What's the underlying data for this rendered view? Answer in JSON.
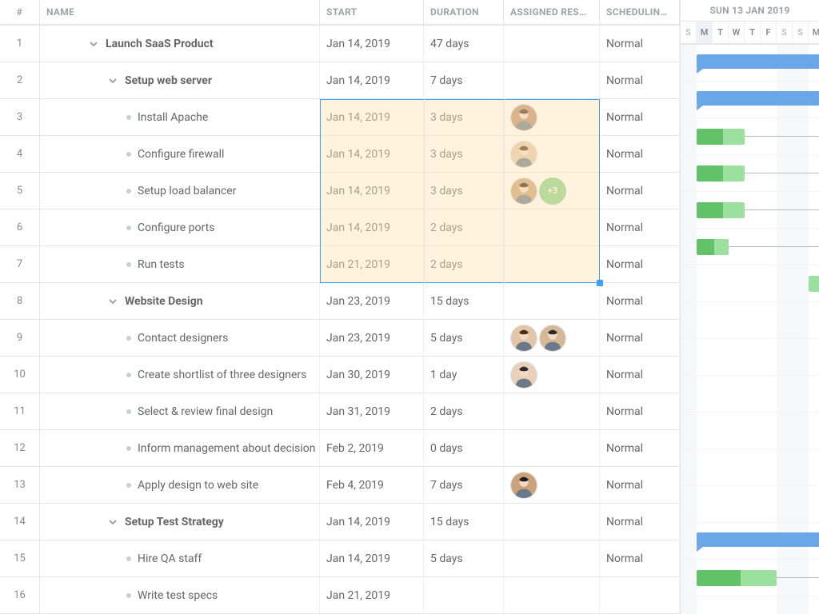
{
  "columns": {
    "num": "#",
    "name": "NAME",
    "start": "START",
    "duration": "DURATION",
    "resources": "ASSIGNED RES…",
    "scheduling": "SCHEDULIN…"
  },
  "gantt": {
    "week_label": "SUN 13 JAN 2019",
    "day_width": 20,
    "start_weekday": 0,
    "days": [
      "S",
      "M",
      "T",
      "W",
      "T",
      "F",
      "S",
      "S",
      "M"
    ],
    "today_index": 1,
    "nonwork_indices": [
      0,
      6,
      7
    ],
    "colors": {
      "summary": "#6aa6e8",
      "task": "#9be09e",
      "progress": "#62c267",
      "nonwork_bg": "#f7f8f9"
    }
  },
  "selection": {
    "first_row": 2,
    "last_row": 6,
    "cols": [
      "start",
      "duration",
      "resources"
    ]
  },
  "avatar_palette": {
    "p1": {
      "bg": "#b88a6c",
      "hair": "#3b2a1e"
    },
    "p2": {
      "bg": "#e3c6a8",
      "hair": "#4a2f1b"
    },
    "p3": {
      "bg": "#c9a074",
      "hair": "#2e1d11"
    },
    "p4": {
      "bg": "#d7b896",
      "hair": "#2b2b2b"
    },
    "p5": {
      "bg": "#e8d1b8",
      "hair": "#2b2b2b"
    },
    "p6": {
      "bg": "#caa27c",
      "hair": "#1f1f1f"
    }
  },
  "rows": [
    {
      "num": 1,
      "indent": 0,
      "type": "summary",
      "name": "Launch SaaS Product",
      "start": "Jan 14, 2019",
      "duration": "47 days",
      "resources": [],
      "scheduling": "Normal",
      "bar": {
        "kind": "summary",
        "offset": 1,
        "span": 50
      }
    },
    {
      "num": 2,
      "indent": 1,
      "type": "summary",
      "name": "Setup web server",
      "start": "Jan 14, 2019",
      "duration": "7 days",
      "resources": [],
      "scheduling": "Normal",
      "bar": {
        "kind": "summary",
        "offset": 1,
        "span": 9
      }
    },
    {
      "num": 3,
      "indent": 2,
      "type": "task",
      "name": "Install Apache",
      "start": "Jan 14, 2019",
      "duration": "3 days",
      "resources": [
        "p1"
      ],
      "scheduling": "Normal",
      "bar": {
        "kind": "task",
        "offset": 1,
        "span": 3,
        "progress": 0.55,
        "dep_to_end": true
      }
    },
    {
      "num": 4,
      "indent": 2,
      "type": "task",
      "name": "Configure firewall",
      "start": "Jan 14, 2019",
      "duration": "3 days",
      "resources": [
        "p2"
      ],
      "scheduling": "Normal",
      "bar": {
        "kind": "task",
        "offset": 1,
        "span": 3,
        "progress": 0.55,
        "dep_to_end": true
      }
    },
    {
      "num": 5,
      "indent": 2,
      "type": "task",
      "name": "Setup load balancer",
      "start": "Jan 14, 2019",
      "duration": "3 days",
      "resources": [
        "p3"
      ],
      "more": "+3",
      "scheduling": "Normal",
      "bar": {
        "kind": "task",
        "offset": 1,
        "span": 3,
        "progress": 0.55,
        "dep_to_end": true
      }
    },
    {
      "num": 6,
      "indent": 2,
      "type": "task",
      "name": "Configure ports",
      "start": "Jan 14, 2019",
      "duration": "2 days",
      "resources": [],
      "scheduling": "Normal",
      "bar": {
        "kind": "task",
        "offset": 1,
        "span": 2,
        "progress": 0.55,
        "dep_to_end": true
      }
    },
    {
      "num": 7,
      "indent": 2,
      "type": "task",
      "name": "Run tests",
      "start": "Jan 21, 2019",
      "duration": "2 days",
      "resources": [],
      "scheduling": "Normal",
      "bar": {
        "kind": "task",
        "offset": 8,
        "span": 2,
        "progress": 0
      }
    },
    {
      "num": 8,
      "indent": 1,
      "type": "summary",
      "name": "Website Design",
      "start": "Jan 23, 2019",
      "duration": "15 days",
      "resources": [],
      "scheduling": "Normal"
    },
    {
      "num": 9,
      "indent": 2,
      "type": "task",
      "name": "Contact designers",
      "start": "Jan 23, 2019",
      "duration": "5 days",
      "resources": [
        "p2",
        "p4"
      ],
      "scheduling": "Normal"
    },
    {
      "num": 10,
      "indent": 2,
      "type": "task",
      "name": "Create shortlist of three designers",
      "start": "Jan 30, 2019",
      "duration": "1 day",
      "resources": [
        "p5"
      ],
      "scheduling": "Normal"
    },
    {
      "num": 11,
      "indent": 2,
      "type": "task",
      "name": "Select & review final design",
      "start": "Jan 31, 2019",
      "duration": "2 days",
      "resources": [],
      "scheduling": "Normal"
    },
    {
      "num": 12,
      "indent": 2,
      "type": "task",
      "name": "Inform management about decision",
      "start": "Feb 2, 2019",
      "duration": "0 days",
      "resources": [],
      "scheduling": "Normal"
    },
    {
      "num": 13,
      "indent": 2,
      "type": "task",
      "name": "Apply design to web site",
      "start": "Feb 4, 2019",
      "duration": "7 days",
      "resources": [
        "p6"
      ],
      "scheduling": "Normal"
    },
    {
      "num": 14,
      "indent": 1,
      "type": "summary",
      "name": "Setup Test Strategy",
      "start": "Jan 14, 2019",
      "duration": "15 days",
      "resources": [],
      "scheduling": "Normal",
      "bar": {
        "kind": "summary",
        "offset": 1,
        "span": 19
      }
    },
    {
      "num": 15,
      "indent": 2,
      "type": "task",
      "name": "Hire QA staff",
      "start": "Jan 14, 2019",
      "duration": "5 days",
      "resources": [],
      "scheduling": "Normal",
      "bar": {
        "kind": "task",
        "offset": 1,
        "span": 5,
        "progress": 0.55,
        "dep_to_end": true
      }
    },
    {
      "num": 16,
      "indent": 2,
      "type": "task",
      "name": "Write test specs",
      "start": "Jan 21, 2019",
      "duration": "",
      "resources": [],
      "scheduling": ""
    }
  ]
}
